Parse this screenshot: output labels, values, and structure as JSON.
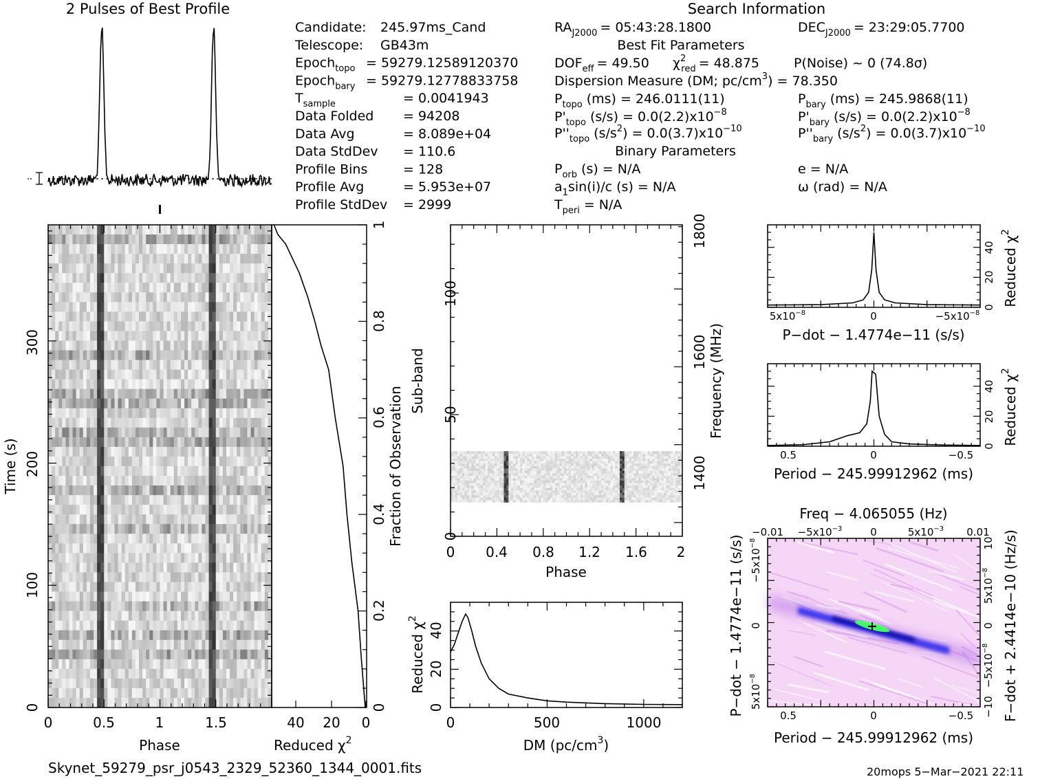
{
  "header": {
    "profile_title": "2 Pulses of Best Profile",
    "search_title": "Search Information"
  },
  "info_left": [
    {
      "label": "Candidate:",
      "value": "245.97ms_Cand"
    },
    {
      "label": "Telescope:",
      "value": "GB43m"
    },
    {
      "label": "Epoch",
      "sub": "topo",
      "value": "= 59279.12589120370"
    },
    {
      "label": "Epoch",
      "sub": "bary",
      "value": "= 59279.12778833758"
    },
    {
      "label": "T",
      "sub": "sample",
      "value": "=  0.0041943"
    },
    {
      "label": "Data Folded",
      "value": "=  94208"
    },
    {
      "label": "Data Avg",
      "value": "=  8.089e+04"
    },
    {
      "label": "Data StdDev",
      "value": "=  110.6"
    },
    {
      "label": "Profile Bins",
      "value": "=  128"
    },
    {
      "label": "Profile Avg",
      "value": "=  5.953e+07"
    },
    {
      "label": "Profile StdDev",
      "value": "=  2999"
    }
  ],
  "info_right": {
    "ra": {
      "label": "RA",
      "sub": "J2000",
      "value": "= 05:43:28.1800"
    },
    "dec": {
      "label": "DEC",
      "sub": "J2000",
      "value": "= 23:29:05.7700"
    },
    "best_fit_title": "Best Fit Parameters",
    "dof": {
      "label": "DOF",
      "sub": "eff",
      "value": "= 49.50"
    },
    "chi2": {
      "label": "χ",
      "sup": "2",
      "sub": "red",
      "value": "= 48.875"
    },
    "pnoise": "P(Noise) ~ 0    (74.8σ)",
    "dm_line": {
      "pre": "Dispersion Measure (DM; pc/cm",
      "sup": "3",
      "post": ") = 78.350"
    },
    "ptopo": {
      "label": "P",
      "sub": "topo",
      "value": "(ms) =  246.0111(11)"
    },
    "pbary": {
      "label": "P",
      "sub": "bary",
      "value": "(ms) =  245.9868(11)"
    },
    "pdtopo": {
      "label": "P'",
      "sub": "topo",
      "value": "(s/s) = 0.0(2.2)x10",
      "sup": "−8"
    },
    "pdbary": {
      "label": "P'",
      "sub": "bary",
      "value": "(s/s) = 0.0(2.2)x10",
      "sup": "−8"
    },
    "pddtopo": {
      "label": "P''",
      "sub": "topo",
      "pre": "(s/s",
      "presup": "2",
      "value": ") = 0.0(3.7)x10",
      "sup": "−10"
    },
    "pddbary": {
      "label": "P''",
      "sub": "bary",
      "pre": "(s/s",
      "presup": "2",
      "value": ") = 0.0(3.7)x10",
      "sup": "−10"
    },
    "binary_title": "Binary Parameters",
    "porb": {
      "label": "P",
      "sub": "orb",
      "value": "(s) = N/A"
    },
    "ecc": "e = N/A",
    "asini": {
      "label": "a",
      "sub": "1",
      "value": "sin(i)/c (s) = N/A"
    },
    "omega": "ω (rad) = N/A",
    "tperi": {
      "label": "T",
      "sub": "peri",
      "value": "= N/A"
    }
  },
  "footer": {
    "filename": "Skynet_59279_psr_j0543_2329_52360_1344_0001.fits",
    "stamp": "20mops  5−Mar−2021 22:11"
  },
  "colors": {
    "ink": "#000000",
    "pink": "#f3c8f3",
    "blue": "#1a1aff",
    "navy": "#000080",
    "green": "#33ff66"
  },
  "chart_data": [
    {
      "id": "profile",
      "type": "line",
      "title": "2 Pulses of Best Profile",
      "x": "phase 0 to 2",
      "pulse_phases": [
        0.5,
        1.5
      ]
    },
    {
      "id": "time_phase",
      "type": "heatmap",
      "xlabel": "Phase",
      "ylabel": "Time (s)",
      "xlim": [
        0,
        2
      ],
      "ylim": [
        0,
        395
      ],
      "xticks": [
        "0",
        "0.5",
        "1",
        "1.5"
      ],
      "yticks": [
        "0",
        "100",
        "200",
        "300"
      ],
      "pulse_phases": [
        0.48,
        1.48
      ]
    },
    {
      "id": "chi_vs_time",
      "type": "line",
      "xlabel": "Reduced χ",
      "xlabel_sup": "2",
      "ylabel": "Fraction of Observation",
      "xticks": [
        "40",
        "20",
        "0"
      ],
      "yticks": [
        "0",
        "0.2",
        "0.4",
        "0.6",
        "0.8",
        "1"
      ],
      "x": [
        0,
        2,
        4,
        7,
        10,
        12,
        16,
        20,
        24,
        28,
        32,
        36,
        40,
        44,
        48,
        50
      ],
      "y": [
        0,
        0.1,
        0.2,
        0.3,
        0.4,
        0.5,
        0.6,
        0.7,
        0.75,
        0.8,
        0.85,
        0.9,
        0.93,
        0.96,
        0.98,
        1.0
      ]
    },
    {
      "id": "subband",
      "type": "heatmap",
      "xlabel": "Phase",
      "ylabel": "Sub-band",
      "y2label": "Frequency (MHz)",
      "xlim": [
        0,
        2
      ],
      "ylim": [
        0,
        128
      ],
      "xticks": [
        "0",
        "0.4",
        "0.8",
        "1.2",
        "1.6",
        "2"
      ],
      "yticks": [
        "0",
        "50",
        "100"
      ],
      "y2ticks": [
        "1400",
        "1600",
        "1800"
      ],
      "filled_subbands": [
        14,
        35
      ],
      "pulse_phases": [
        0.48,
        1.48
      ]
    },
    {
      "id": "dm_curve",
      "type": "line",
      "xlabel": "DM (pc/cm",
      "xlabel_sup": "3",
      "xlabel_post": ")",
      "ylabel": "Reduced χ",
      "ylabel_sup": "2",
      "xlim": [
        0,
        1200
      ],
      "ylim": [
        0,
        55
      ],
      "xticks": [
        "0",
        "500",
        "1000"
      ],
      "yticks": [
        "0",
        "20",
        "40"
      ],
      "x": [
        0,
        20,
        40,
        60,
        78,
        90,
        110,
        130,
        160,
        200,
        250,
        300,
        400,
        500,
        600,
        800,
        1000,
        1200
      ],
      "y": [
        29,
        33,
        39,
        45,
        48.9,
        47,
        40,
        32,
        23,
        15,
        10,
        7,
        5,
        3.5,
        2.8,
        2,
        1.6,
        1.5
      ]
    },
    {
      "id": "pdot_curve",
      "type": "line",
      "xlabel": "P−dot − 1.4774e−11 (s/s)",
      "ylabel": "Reduced χ",
      "ylabel_sup": "2",
      "xticks": [
        "5x10",
        "0",
        "−5x10"
      ],
      "xtick_sup": "−8",
      "yticks": [
        "0",
        "20",
        "40"
      ],
      "xlim": [
        1e-07,
        -1e-07
      ],
      "ylim": [
        0,
        55
      ],
      "x": [
        1e-07,
        5e-08,
        2e-08,
        1e-08,
        5e-09,
        2e-09,
        0,
        -2e-09,
        -5e-09,
        -1e-08,
        -2e-08,
        -5e-08,
        -1e-07
      ],
      "y": [
        1.5,
        1.8,
        3,
        5,
        10,
        25,
        50,
        25,
        10,
        5,
        3,
        1.8,
        1.5
      ]
    },
    {
      "id": "period_curve",
      "type": "line",
      "xlabel": "Period − 245.99912962 (ms)",
      "ylabel": "Reduced χ",
      "ylabel_sup": "2",
      "xticks": [
        "0.5",
        "0",
        "−0.5"
      ],
      "yticks": [
        "0",
        "20",
        "40"
      ],
      "xlim": [
        0.6,
        -0.6
      ],
      "ylim": [
        0,
        55
      ],
      "x": [
        0.6,
        0.4,
        0.25,
        0.15,
        0.08,
        0.04,
        0.02,
        0.01,
        -0.01,
        -0.03,
        -0.06,
        -0.1,
        -0.2,
        -0.4,
        -0.6
      ],
      "y": [
        0.5,
        1,
        3,
        7,
        9,
        15,
        30,
        50,
        48,
        20,
        8,
        3,
        1.5,
        0.8,
        0.5
      ]
    },
    {
      "id": "p_pdot_plane",
      "type": "heatmap",
      "title": "Freq − 4.065055 (Hz)",
      "xlabel": "Period − 245.99912962 (ms)",
      "ylabel": "P−dot − 1.4774e−11 (s/s)",
      "y2label": "F−dot + 2.4414e−10 (Hz/s)",
      "xticks": [
        "0.5",
        "0",
        "−0.5"
      ],
      "x2ticks": [
        "−0.01",
        "−5x10",
        "0",
        "5x10",
        "0.01"
      ],
      "x2tick_sup": "−3",
      "yticks": [
        "5x10",
        "0",
        "−5x10"
      ],
      "ytick_sup": "−8",
      "y2ticks": [
        "−10",
        "−5x10",
        "0",
        "5x10",
        "10"
      ],
      "y2tick_sup": "−8"
    }
  ]
}
